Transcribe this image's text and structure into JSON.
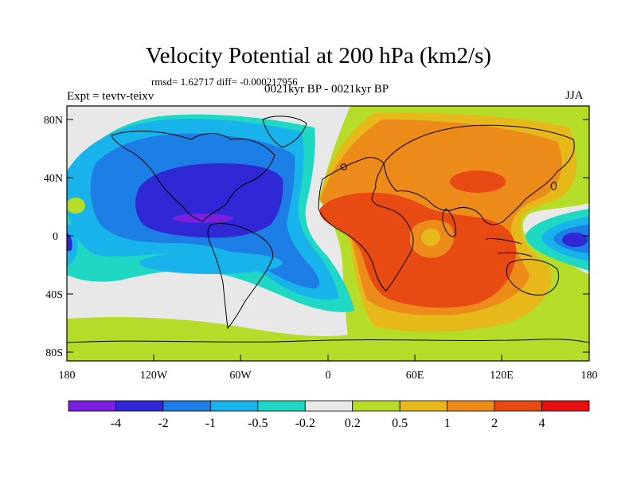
{
  "title": "Velocity Potential at 200 hPa (km2/s)",
  "stats": "rmsd= 1.62717 diff= -0.000217956",
  "left_label": "Expt = tevtv-teixv",
  "center_label": "0021kyr BP - 0021kyr BP",
  "right_label": "JJA",
  "lat_ticks": [
    "80N",
    "40N",
    "0",
    "40S",
    "80S"
  ],
  "lon_ticks": [
    "180",
    "120W",
    "60W",
    "0",
    "60E",
    "120E",
    "180"
  ],
  "colorbar": {
    "labels": [
      "-4",
      "-2",
      "-1",
      "-0.5",
      "-0.2",
      "0.2",
      "0.5",
      "1",
      "2",
      "4"
    ],
    "colors": [
      "#7a1fe0",
      "#2f28d4",
      "#1d7ee6",
      "#19b3ec",
      "#1fd8c4",
      "#e8e8e8",
      "#b4dc28",
      "#e6b81a",
      "#ec8a1a",
      "#e84a14",
      "#e61010"
    ]
  }
}
